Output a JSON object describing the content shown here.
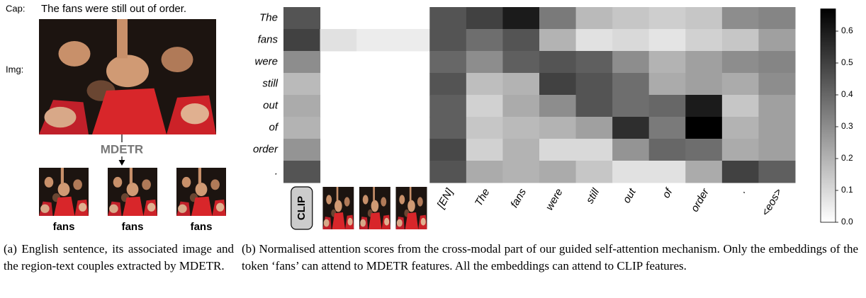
{
  "left": {
    "caption_label": "Cap:",
    "caption": "The fans were still out of order.",
    "image_label": "Img:",
    "model": "MDETR",
    "crops": [
      "fans",
      "fans",
      "fans"
    ],
    "subcaption": "(a) English sentence, its associated image and the region-text couples extracted by MDETR."
  },
  "chart_data": {
    "type": "heatmap",
    "rows": [
      "The",
      "fans",
      "were",
      "still",
      "out",
      "of",
      "order",
      "."
    ],
    "columns": [
      "CLIP",
      null,
      null,
      null,
      "[EN]",
      "The",
      "fans",
      "were",
      "still",
      "out",
      "of",
      "order",
      ".",
      "<eos>"
    ],
    "values": [
      [
        0.45,
        null,
        null,
        null,
        0.45,
        0.5,
        0.6,
        0.35,
        0.18,
        0.15,
        0.13,
        0.15,
        0.3,
        0.32
      ],
      [
        0.5,
        0.08,
        0.05,
        0.05,
        0.45,
        0.38,
        0.45,
        0.2,
        0.08,
        0.1,
        0.07,
        0.12,
        0.15,
        0.25
      ],
      [
        0.3,
        null,
        null,
        null,
        0.4,
        0.3,
        0.42,
        0.45,
        0.42,
        0.3,
        0.2,
        0.25,
        0.3,
        0.32
      ],
      [
        0.18,
        null,
        null,
        null,
        0.45,
        0.17,
        0.2,
        0.5,
        0.45,
        0.38,
        0.22,
        0.25,
        0.22,
        0.3
      ],
      [
        0.22,
        null,
        null,
        null,
        0.42,
        0.12,
        0.22,
        0.3,
        0.45,
        0.38,
        0.4,
        0.6,
        0.15,
        0.25
      ],
      [
        0.2,
        null,
        null,
        null,
        0.42,
        0.15,
        0.18,
        0.2,
        0.25,
        0.55,
        0.35,
        0.67,
        0.2,
        0.25
      ],
      [
        0.28,
        null,
        null,
        null,
        0.48,
        0.12,
        0.2,
        0.1,
        0.1,
        0.28,
        0.4,
        0.38,
        0.22,
        0.25
      ],
      [
        0.45,
        null,
        null,
        null,
        0.45,
        0.22,
        0.2,
        0.22,
        0.15,
        0.08,
        0.08,
        0.22,
        0.5,
        0.42
      ]
    ],
    "colormap": "gray_r",
    "zlim": [
      0,
      0.67
    ],
    "zticks": [
      {
        "value": 0,
        "label": "0.0"
      },
      0.1,
      0.2,
      0.3,
      0.4,
      0.5,
      0.6
    ]
  },
  "subcaption_b": "(b) Normalised attention scores from the cross-modal part of our guided self-attention mechanism. Only the embeddings of the token ‘fans’ can attend to MDETR features. All the embeddings can attend to CLIP features."
}
